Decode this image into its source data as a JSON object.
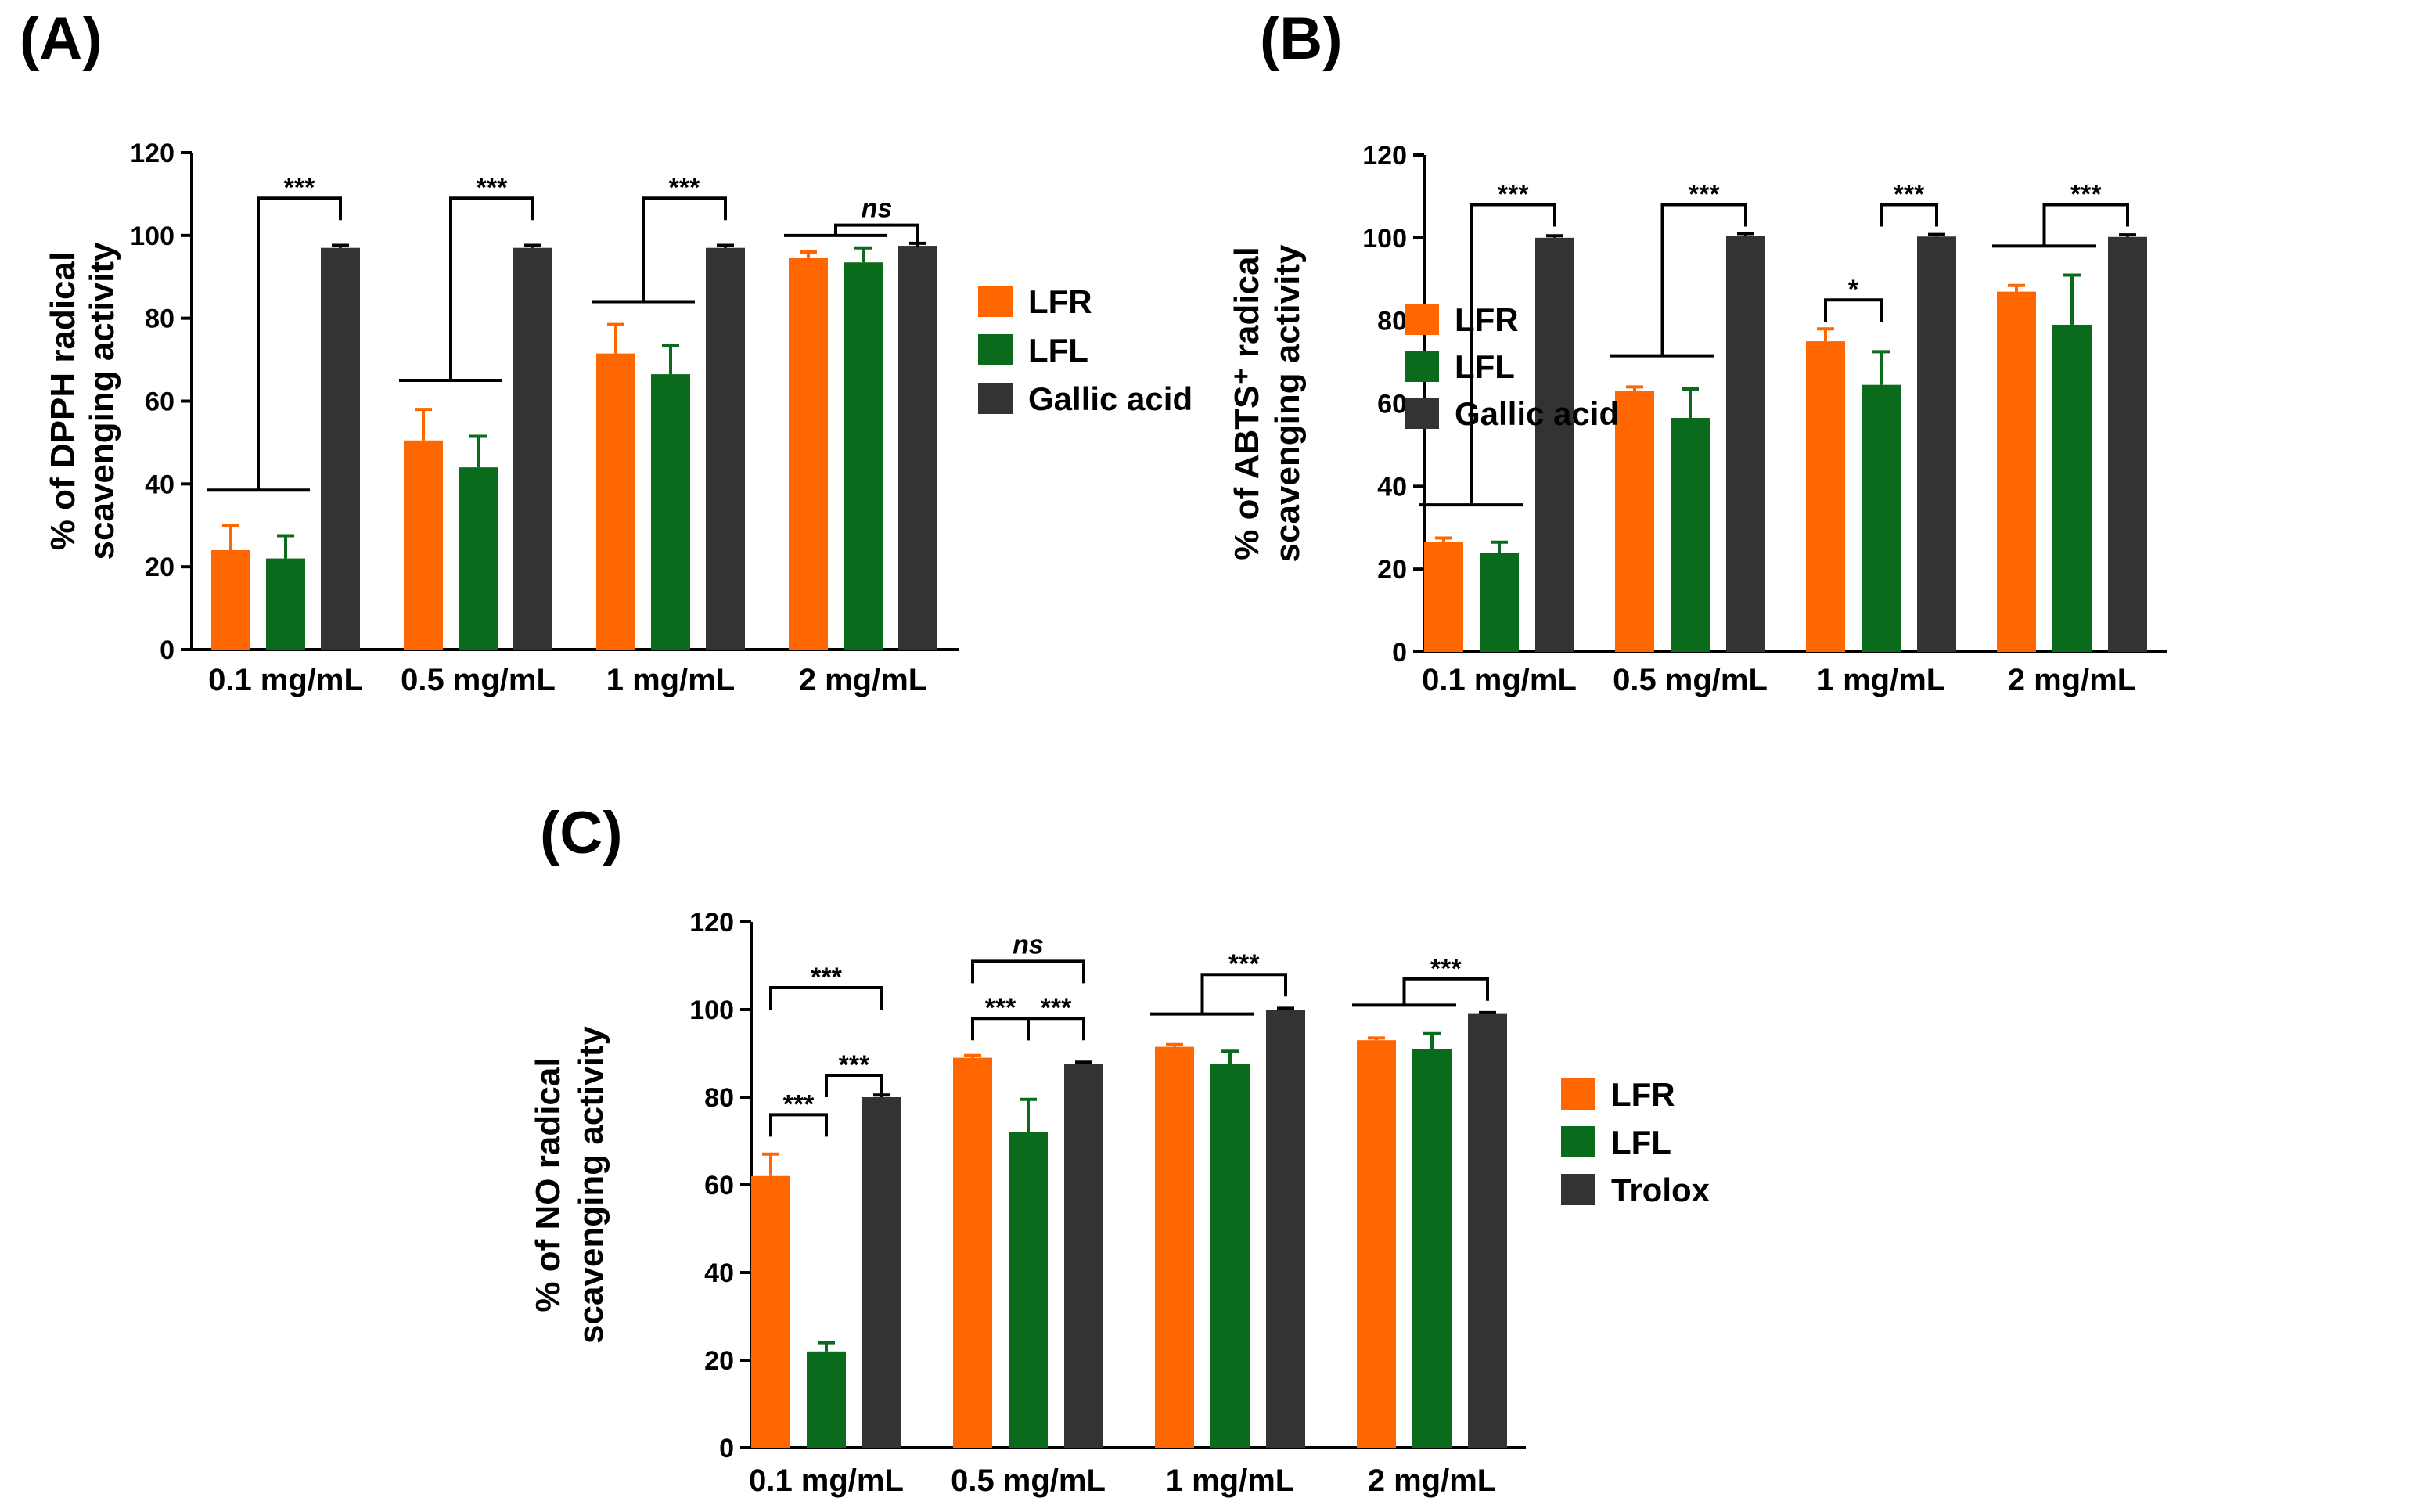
{
  "series_colors": {
    "LFR": "#ff6600",
    "LFL": "#0b6b1d",
    "Ref": "#333333"
  },
  "chart_data": [
    {
      "id": "A",
      "panel_label": "(A)",
      "type": "bar",
      "ylabel_lines": [
        "% of DPPH radical",
        "scavenging activity"
      ],
      "ylim": [
        0,
        120
      ],
      "yticks": [
        0,
        20,
        40,
        60,
        80,
        100,
        120
      ],
      "categories": [
        "0.1 mg/mL",
        "0.5 mg/mL",
        "1 mg/mL",
        "2 mg/mL"
      ],
      "series": [
        {
          "name": "LFR",
          "values": [
            24,
            50.5,
            71.5,
            94.5
          ],
          "errors": [
            6,
            7.5,
            7,
            1.5
          ]
        },
        {
          "name": "LFL",
          "values": [
            22,
            44,
            66.5,
            93.5
          ],
          "errors": [
            5.5,
            7.5,
            7,
            3.5
          ]
        },
        {
          "name": "Gallic acid",
          "values": [
            97,
            97,
            97,
            97.5
          ],
          "errors": [
            0.6,
            0.6,
            0.6,
            0.6
          ]
        }
      ],
      "significance": [
        {
          "category": 0,
          "type": "group",
          "y": 38.5,
          "line_y": 109,
          "label": "***"
        },
        {
          "category": 1,
          "type": "group",
          "y": 65,
          "line_y": 109,
          "label": "***"
        },
        {
          "category": 2,
          "type": "group",
          "y": 84,
          "line_y": 109,
          "label": "***"
        },
        {
          "category": 3,
          "type": "group",
          "y": 100,
          "line_y": 102.5,
          "label": "ns"
        }
      ]
    },
    {
      "id": "B",
      "panel_label": "(B)",
      "type": "bar",
      "ylabel_lines": [
        "% of ABTS⁺ radical",
        "scavenging activity"
      ],
      "ylim": [
        0,
        120
      ],
      "yticks": [
        0,
        20,
        40,
        60,
        80,
        100,
        120
      ],
      "categories": [
        "0.1 mg/mL",
        "0.5 mg/mL",
        "1 mg/mL",
        "2 mg/mL"
      ],
      "series": [
        {
          "name": "LFR",
          "values": [
            26.5,
            63,
            75,
            87
          ],
          "errors": [
            1,
            1,
            3,
            1.5
          ]
        },
        {
          "name": "LFL",
          "values": [
            24,
            56.5,
            64.5,
            79
          ],
          "errors": [
            2.5,
            7,
            8,
            12
          ]
        },
        {
          "name": "Gallic acid",
          "values": [
            100,
            100.5,
            100.3,
            100.2
          ],
          "errors": [
            0.5,
            0.5,
            0.5,
            0.5
          ]
        }
      ],
      "significance": [
        {
          "category": 0,
          "type": "group",
          "y": 35.5,
          "line_y": 108,
          "label": "***"
        },
        {
          "category": 1,
          "type": "group",
          "y": 71.5,
          "line_y": 108,
          "label": "***"
        },
        {
          "category": 2,
          "type": "pair",
          "a": 0,
          "b": 1,
          "y": 85,
          "label": "*"
        },
        {
          "category": 2,
          "type": "pair",
          "a": 1,
          "b": 2,
          "y": 108,
          "label": "***"
        },
        {
          "category": 3,
          "type": "group",
          "y": 98,
          "line_y": 108,
          "label": "***"
        }
      ]
    },
    {
      "id": "C",
      "panel_label": "(C)",
      "type": "bar",
      "ylabel_lines": [
        "% of NO radical",
        "scavenging activity"
      ],
      "ylim": [
        0,
        120
      ],
      "yticks": [
        0,
        20,
        40,
        60,
        80,
        100,
        120
      ],
      "categories": [
        "0.1 mg/mL",
        "0.5 mg/mL",
        "1 mg/mL",
        "2 mg/mL"
      ],
      "series": [
        {
          "name": "LFR",
          "values": [
            62,
            89,
            91.5,
            93
          ],
          "errors": [
            5,
            0.5,
            0.5,
            0.5
          ]
        },
        {
          "name": "LFL",
          "values": [
            22,
            72,
            87.5,
            91
          ],
          "errors": [
            2,
            7.5,
            3,
            3.5
          ]
        },
        {
          "name": "Trolox",
          "values": [
            80,
            87.5,
            100,
            99
          ],
          "errors": [
            0.5,
            0.5,
            0.3,
            0.3
          ]
        }
      ],
      "significance": [
        {
          "category": 0,
          "type": "pair",
          "a": 0,
          "b": 2,
          "y": 105,
          "label": "***"
        },
        {
          "category": 0,
          "type": "pair",
          "a": 1,
          "b": 2,
          "y": 85,
          "label": "***"
        },
        {
          "category": 0,
          "type": "pair",
          "a": 0,
          "b": 1,
          "y": 76,
          "label": "***"
        },
        {
          "category": 1,
          "type": "pair",
          "a": 0,
          "b": 2,
          "y": 111,
          "label": "ns"
        },
        {
          "category": 1,
          "type": "pair",
          "a": 0,
          "b": 1,
          "y": 98,
          "label": "***"
        },
        {
          "category": 1,
          "type": "pair",
          "a": 1,
          "b": 2,
          "y": 98,
          "label": "***"
        },
        {
          "category": 2,
          "type": "group",
          "y": 99,
          "line_y": 108,
          "label": "***"
        },
        {
          "category": 3,
          "type": "group",
          "y": 101,
          "line_y": 107,
          "label": "***"
        }
      ]
    }
  ]
}
